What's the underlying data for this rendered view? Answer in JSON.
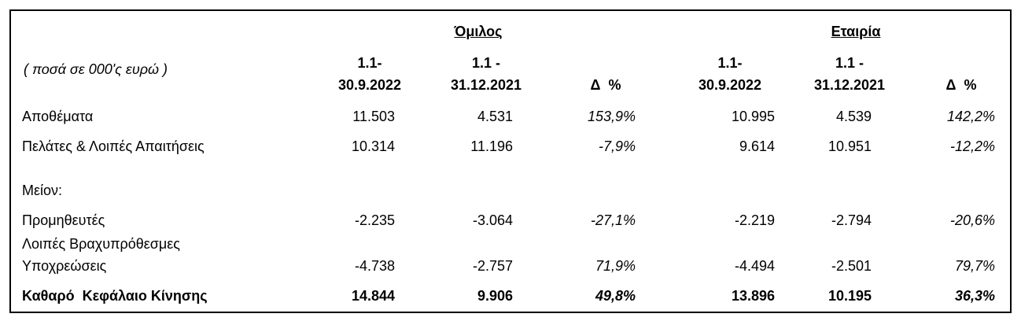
{
  "header": {
    "group": "Όμιλος",
    "company": "Εταιρία",
    "units": "( ποσά σε 000'ς ευρώ )",
    "columns": [
      [
        "1.1-",
        "30.9.2022"
      ],
      [
        "1.1 -",
        "31.12.2021"
      ],
      [
        "Δ  %"
      ],
      [
        "1.1-",
        "30.9.2022"
      ],
      [
        "1.1 -",
        "31.12.2021"
      ],
      [
        "Δ  %"
      ]
    ]
  },
  "table": {
    "rows": [
      {
        "label": [
          "Αποθέματα"
        ],
        "cells": [
          "11.503",
          "4.531",
          "153,9%",
          "10.995",
          "4.539",
          "142,2%"
        ]
      },
      {
        "label": [
          "Πελάτες & Λοιπές Απαιτήσεις"
        ],
        "cells": [
          "10.314",
          "11.196",
          "-7,9%",
          "9.614",
          "10.951",
          "-12,2%"
        ]
      },
      {
        "label": [
          "Μείον:"
        ],
        "cells": []
      },
      {
        "label": [
          "Προμηθευτές"
        ],
        "cells": [
          "-2.235",
          "-3.064",
          "-27,1%",
          "-2.219",
          "-2.794",
          "-20,6%"
        ]
      },
      {
        "label": [
          "Λοιπές Βραχυπρόθεσμες",
          "Υποχρεώσεις"
        ],
        "cells": [
          "-4.738",
          "-2.757",
          "71,9%",
          "-4.494",
          "-2.501",
          "79,7%"
        ]
      },
      {
        "label": [
          "Καθαρό  Κεφάλαιο Κίνησης"
        ],
        "cells": [
          "14.844",
          "9.906",
          "49,8%",
          "13.896",
          "10.195",
          "36,3%"
        ]
      }
    ]
  }
}
